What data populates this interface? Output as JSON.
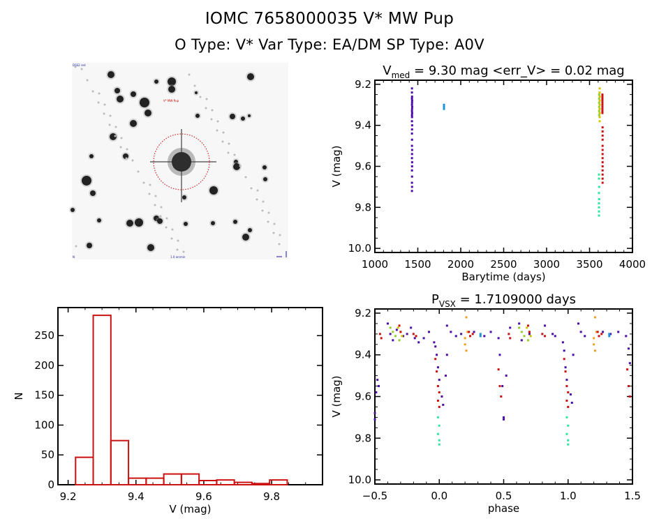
{
  "header": {
    "title_line1": "IOMC 7658000035    V* MW Pup",
    "title_line2": "O Type: V*   Var Type: EA/DM   SP Type: A0V"
  },
  "sky_image": {
    "top_left_label": "DSS2 red",
    "target_label": "V* MW Pup",
    "bottom_left_label": "N",
    "bottom_center_label": "1.0 arcmin",
    "marker_color": "#cc0000",
    "label_color": "#1a1aa0"
  },
  "chart_data": [
    {
      "id": "lightcurve",
      "type": "scatter",
      "title_main": "V",
      "title_sub": "med",
      "title_rest": " = 9.30 mag <err_V> = 0.02 mag",
      "xlabel": "Barytime (days)",
      "ylabel": "V (mag)",
      "xlim": [
        1000,
        4000
      ],
      "ylim": [
        10.02,
        9.18
      ],
      "xticks": [
        1000,
        1500,
        2000,
        2500,
        3000,
        3500,
        4000
      ],
      "xtick_labels": [
        "1000",
        "1500",
        "2000",
        "2500",
        "3000",
        "3500",
        "4000"
      ],
      "yticks": [
        9.2,
        9.4,
        9.6,
        9.8,
        10.0
      ],
      "ytick_labels": [
        "9.2",
        "9.4",
        "9.6",
        "9.8",
        "10.0"
      ],
      "grid": false,
      "series": [
        {
          "name": "season-1",
          "color": "#4b0fa8",
          "x_range": [
            1425,
            1440
          ],
          "points": [
            [
              1432,
              9.22
            ],
            [
              1432,
              9.24
            ],
            [
              1433,
              9.26
            ],
            [
              1432,
              9.27
            ],
            [
              1434,
              9.28
            ],
            [
              1433,
              9.29
            ],
            [
              1432,
              9.3
            ],
            [
              1435,
              9.31
            ],
            [
              1433,
              9.32
            ],
            [
              1432,
              9.33
            ],
            [
              1434,
              9.34
            ],
            [
              1432,
              9.35
            ],
            [
              1433,
              9.36
            ],
            [
              1432,
              9.38
            ],
            [
              1434,
              9.4
            ],
            [
              1433,
              9.42
            ],
            [
              1432,
              9.44
            ],
            [
              1433,
              9.47
            ],
            [
              1432,
              9.5
            ],
            [
              1434,
              9.52
            ],
            [
              1433,
              9.54
            ],
            [
              1432,
              9.56
            ],
            [
              1434,
              9.58
            ],
            [
              1433,
              9.6
            ],
            [
              1432,
              9.62
            ],
            [
              1433,
              9.65
            ],
            [
              1432,
              9.68
            ],
            [
              1433,
              9.7
            ],
            [
              1432,
              9.72
            ]
          ]
        },
        {
          "name": "season-2",
          "color": "#1a8fd6",
          "points": [
            [
              1805,
              9.3
            ],
            [
              1805,
              9.31
            ],
            [
              1805,
              9.32
            ]
          ]
        },
        {
          "name": "season-3a",
          "color": "#d4c400",
          "points": [
            [
              3618,
              9.22
            ],
            [
              3618,
              9.24
            ],
            [
              3618,
              9.26
            ],
            [
              3618,
              9.28
            ],
            [
              3618,
              9.3
            ],
            [
              3618,
              9.32
            ],
            [
              3618,
              9.34
            ],
            [
              3618,
              9.36
            ],
            [
              3618,
              9.38
            ]
          ]
        },
        {
          "name": "season-3b",
          "color": "#8fd12a",
          "points": [
            [
              3612,
              9.25
            ],
            [
              3612,
              9.27
            ],
            [
              3612,
              9.29
            ],
            [
              3612,
              9.31
            ],
            [
              3612,
              9.33
            ],
            [
              3612,
              9.35
            ]
          ]
        },
        {
          "name": "season-3c",
          "color": "#cc1111",
          "points": [
            [
              3650,
              9.25
            ],
            [
              3650,
              9.26
            ],
            [
              3650,
              9.27
            ],
            [
              3650,
              9.28
            ],
            [
              3650,
              9.29
            ],
            [
              3650,
              9.3
            ],
            [
              3650,
              9.31
            ],
            [
              3650,
              9.32
            ],
            [
              3650,
              9.33
            ],
            [
              3650,
              9.34
            ],
            [
              3652,
              9.41
            ],
            [
              3652,
              9.43
            ],
            [
              3652,
              9.45
            ],
            [
              3652,
              9.47
            ],
            [
              3652,
              9.5
            ],
            [
              3652,
              9.52
            ],
            [
              3652,
              9.54
            ],
            [
              3652,
              9.56
            ],
            [
              3652,
              9.58
            ],
            [
              3652,
              9.6
            ],
            [
              3652,
              9.62
            ],
            [
              3652,
              9.64
            ],
            [
              3652,
              9.66
            ],
            [
              3652,
              9.68
            ]
          ]
        },
        {
          "name": "season-3d",
          "color": "#2ee6a0",
          "points": [
            [
              3610,
              9.64
            ],
            [
              3610,
              9.66
            ],
            [
              3612,
              9.7
            ],
            [
              3610,
              9.73
            ],
            [
              3612,
              9.76
            ],
            [
              3610,
              9.78
            ],
            [
              3610,
              9.8
            ],
            [
              3610,
              9.82
            ],
            [
              3610,
              9.84
            ]
          ]
        }
      ]
    },
    {
      "id": "histogram",
      "type": "bar",
      "title": "",
      "xlabel": "V (mag)",
      "ylabel": "N",
      "xlim": [
        9.17,
        9.95
      ],
      "ylim": [
        0,
        297
      ],
      "xticks": [
        9.2,
        9.4,
        9.6,
        9.8
      ],
      "xtick_labels": [
        "9.2",
        "9.4",
        "9.6",
        "9.8"
      ],
      "yticks": [
        0,
        50,
        100,
        150,
        200,
        250
      ],
      "ytick_labels": [
        "0",
        "50",
        "100",
        "150",
        "200",
        "250"
      ],
      "bar_color": "#cc1111",
      "bin_edges": [
        9.222,
        9.274,
        9.326,
        9.378,
        9.43,
        9.482,
        9.534,
        9.586,
        9.638,
        9.69,
        9.742,
        9.794,
        9.846
      ],
      "values": [
        46,
        284,
        74,
        11,
        11,
        18,
        18,
        7,
        8,
        4,
        2,
        8
      ]
    },
    {
      "id": "phase-curve",
      "type": "scatter",
      "title_main": "P",
      "title_sub": "VSX",
      "title_rest": " = 1.7109000 days",
      "xlabel": "phase",
      "ylabel": "V (mag)",
      "xlim": [
        -0.5,
        1.5
      ],
      "ylim": [
        10.02,
        9.18
      ],
      "xticks": [
        -0.5,
        0.0,
        0.5,
        1.0,
        1.5
      ],
      "xtick_labels": [
        "−0.5",
        "0.0",
        "0.5",
        "1.0",
        "1.5"
      ],
      "yticks": [
        9.2,
        9.4,
        9.6,
        9.8,
        10.0
      ],
      "ytick_labels": [
        "9.2",
        "9.4",
        "9.6",
        "9.8",
        "10.0"
      ],
      "grid": false,
      "period_days": 1.7109,
      "series": [
        {
          "name": "season-1",
          "color": "#4b0fa8",
          "points": [
            [
              -0.4,
              9.25
            ],
            [
              -0.38,
              9.3
            ],
            [
              -0.36,
              9.33
            ],
            [
              -0.33,
              9.28
            ],
            [
              -0.28,
              9.31
            ],
            [
              -0.25,
              9.3
            ],
            [
              -0.22,
              9.27
            ],
            [
              -0.19,
              9.32
            ],
            [
              -0.16,
              9.34
            ],
            [
              -0.12,
              9.32
            ],
            [
              -0.08,
              9.29
            ],
            [
              -0.04,
              9.34
            ],
            [
              -0.03,
              9.36
            ],
            [
              -0.02,
              9.4
            ],
            [
              -0.01,
              9.46
            ],
            [
              0.0,
              9.52
            ],
            [
              0.02,
              9.6
            ],
            [
              0.03,
              9.64
            ],
            [
              0.05,
              9.5
            ],
            [
              0.06,
              9.4
            ],
            [
              0.06,
              9.26
            ],
            [
              0.09,
              9.29
            ],
            [
              0.13,
              9.31
            ],
            [
              0.17,
              9.3
            ],
            [
              0.27,
              9.29
            ],
            [
              0.35,
              9.31
            ],
            [
              0.4,
              9.29
            ],
            [
              0.46,
              9.32
            ],
            [
              0.47,
              9.4
            ],
            [
              0.49,
              9.55
            ],
            [
              0.5,
              9.7
            ],
            [
              0.5,
              9.71
            ],
            [
              0.52,
              9.5
            ],
            [
              0.55,
              9.27
            ],
            [
              0.62,
              9.25
            ],
            [
              0.64,
              9.33
            ],
            [
              0.7,
              9.3
            ],
            [
              0.82,
              9.26
            ],
            [
              0.88,
              9.3
            ],
            [
              0.9,
              9.31
            ],
            [
              0.96,
              9.34
            ],
            [
              0.97,
              9.38
            ],
            [
              0.98,
              9.46
            ],
            [
              0.99,
              9.52
            ],
            [
              1.02,
              9.59
            ],
            [
              1.03,
              9.63
            ],
            [
              1.04,
              9.4
            ],
            [
              1.08,
              9.25
            ],
            [
              1.1,
              9.29
            ],
            [
              1.13,
              9.31
            ],
            [
              1.27,
              9.29
            ],
            [
              1.33,
              9.3
            ],
            [
              1.39,
              9.29
            ],
            [
              1.45,
              9.31
            ],
            [
              1.47,
              9.37
            ],
            [
              1.48,
              9.44
            ],
            [
              -0.5,
              9.71
            ],
            [
              -0.5,
              9.68
            ],
            [
              -0.49,
              9.58
            ],
            [
              -0.48,
              9.52
            ],
            [
              -0.47,
              9.55
            ]
          ]
        },
        {
          "name": "season-2",
          "color": "#1a8fd6",
          "points": [
            [
              0.32,
              9.3
            ],
            [
              0.32,
              9.31
            ],
            [
              1.32,
              9.3
            ],
            [
              1.32,
              9.31
            ]
          ]
        },
        {
          "name": "season-3a",
          "color": "#d4c400",
          "points": [
            [
              -0.32,
              9.27
            ],
            [
              -0.3,
              9.29
            ],
            [
              -0.29,
              9.31
            ],
            [
              0.68,
              9.27
            ],
            [
              0.7,
              9.29
            ],
            [
              0.71,
              9.31
            ]
          ]
        },
        {
          "name": "season-3o",
          "color": "#f0a020",
          "points": [
            [
              0.21,
              9.22
            ],
            [
              0.2,
              9.32
            ],
            [
              0.2,
              9.35
            ],
            [
              0.21,
              9.38
            ],
            [
              0.22,
              9.29
            ],
            [
              1.21,
              9.22
            ],
            [
              1.2,
              9.32
            ],
            [
              1.2,
              9.35
            ],
            [
              1.21,
              9.38
            ],
            [
              1.22,
              9.29
            ]
          ]
        },
        {
          "name": "season-3b",
          "color": "#8fd12a",
          "points": [
            [
              -0.38,
              9.27
            ],
            [
              -0.36,
              9.29
            ],
            [
              -0.34,
              9.31
            ],
            [
              -0.31,
              9.33
            ],
            [
              0.62,
              9.27
            ],
            [
              0.64,
              9.29
            ],
            [
              0.66,
              9.31
            ],
            [
              0.69,
              9.33
            ]
          ]
        },
        {
          "name": "season-3c",
          "color": "#cc1111",
          "points": [
            [
              -0.46,
              9.3
            ],
            [
              -0.45,
              9.32
            ],
            [
              -0.31,
              9.26
            ],
            [
              -0.3,
              9.29
            ],
            [
              -0.2,
              9.3
            ],
            [
              -0.18,
              9.31
            ],
            [
              -0.03,
              9.42
            ],
            [
              -0.02,
              9.48
            ],
            [
              -0.01,
              9.55
            ],
            [
              0.0,
              9.58
            ],
            [
              -0.01,
              9.62
            ],
            [
              0.0,
              9.65
            ],
            [
              0.23,
              9.29
            ],
            [
              0.24,
              9.31
            ],
            [
              0.26,
              9.3
            ],
            [
              0.46,
              9.47
            ],
            [
              0.47,
              9.55
            ],
            [
              0.48,
              9.6
            ],
            [
              0.54,
              9.3
            ],
            [
              0.55,
              9.32
            ],
            [
              0.69,
              9.26
            ],
            [
              0.7,
              9.29
            ],
            [
              0.8,
              9.3
            ],
            [
              0.82,
              9.31
            ],
            [
              0.97,
              9.42
            ],
            [
              0.98,
              9.48
            ],
            [
              0.99,
              9.55
            ],
            [
              1.0,
              9.58
            ],
            [
              0.99,
              9.62
            ],
            [
              1.0,
              9.65
            ],
            [
              1.23,
              9.29
            ],
            [
              1.24,
              9.31
            ],
            [
              1.26,
              9.3
            ],
            [
              1.46,
              9.47
            ],
            [
              1.47,
              9.55
            ],
            [
              1.48,
              9.6
            ]
          ]
        },
        {
          "name": "season-3d",
          "color": "#2ee6a0",
          "points": [
            [
              -0.01,
              9.7
            ],
            [
              0.0,
              9.74
            ],
            [
              -0.01,
              9.78
            ],
            [
              0.0,
              9.81
            ],
            [
              0.0,
              9.83
            ],
            [
              0.99,
              9.7
            ],
            [
              1.0,
              9.74
            ],
            [
              0.99,
              9.78
            ],
            [
              1.0,
              9.81
            ],
            [
              1.0,
              9.83
            ]
          ]
        }
      ]
    }
  ]
}
